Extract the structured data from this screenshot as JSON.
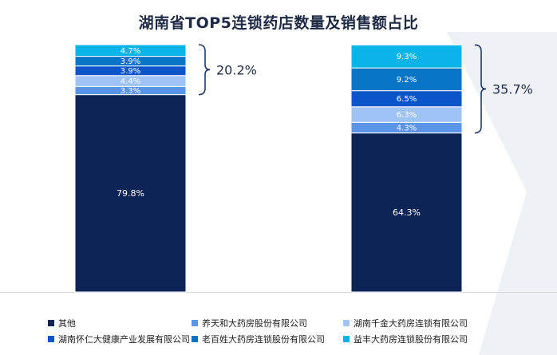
{
  "colors": {
    "background_accent": "#eef1f6",
    "baseline": "#d9d9d9",
    "bracket": "#1f3a6e"
  },
  "chart_data": {
    "type": "bar",
    "stacked": true,
    "title": "湖南省TOP5连锁药店数量及销售额占比",
    "xlabel": "",
    "ylabel": "",
    "ylim": [
      0,
      100
    ],
    "categories": [
      "",
      ""
    ],
    "series": [
      {
        "name": "其他",
        "color": "#0d2556",
        "values": [
          79.8,
          64.3
        ],
        "labels": [
          "79.8%",
          "64.3%"
        ]
      },
      {
        "name": "养天和大药房股份有限公司",
        "color": "#5b95e8",
        "values": [
          3.3,
          4.3
        ],
        "labels": [
          "3.3%",
          "4.3%"
        ]
      },
      {
        "name": "湖南千金大药房连锁有限公司",
        "color": "#9ec3f5",
        "values": [
          4.4,
          6.3
        ],
        "labels": [
          "4.4%",
          "6.3%"
        ]
      },
      {
        "name": "湖南怀仁大健康产业发展有限公司",
        "color": "#0a56c9",
        "values": [
          3.9,
          6.5
        ],
        "labels": [
          "3.9%",
          "6.5%"
        ]
      },
      {
        "name": "老百姓大药房连锁股份有限公司",
        "color": "#0874c6",
        "values": [
          3.9,
          9.2
        ],
        "labels": [
          "3.9%",
          "9.2%"
        ]
      },
      {
        "name": "益丰大药房连锁股份有限公司",
        "color": "#0ab3e8",
        "values": [
          4.7,
          9.3
        ],
        "labels": [
          "4.7%",
          "9.3%"
        ]
      }
    ],
    "annotations": [
      {
        "bar": 0,
        "text": "20.2%"
      },
      {
        "bar": 1,
        "text": "35.7%"
      }
    ],
    "legend_position": "bottom",
    "grid": false
  }
}
